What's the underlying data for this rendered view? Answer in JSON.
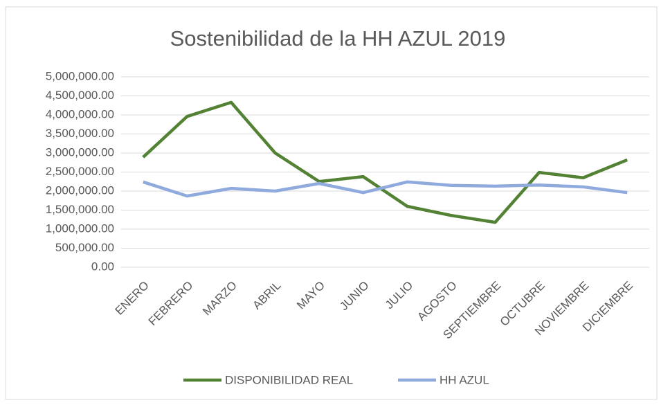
{
  "chart_data": {
    "type": "line",
    "title": "Sostenibilidad de la HH AZUL 2019",
    "categories": [
      "ENERO",
      "FEBRERO",
      "MARZO",
      "ABRIL",
      "MAYO",
      "JUNIO",
      "JULIO",
      "AGOSTO",
      "SEPTIEMBRE",
      "OCTUBRE",
      "NOVIEMBRE",
      "DICIEMBRE"
    ],
    "series": [
      {
        "name": "DISPONIBILIDAD REAL",
        "color": "#548235",
        "values": [
          2890000,
          3960000,
          4330000,
          3000000,
          2250000,
          2380000,
          1600000,
          1360000,
          1180000,
          2490000,
          2350000,
          2820000
        ]
      },
      {
        "name": "HH AZUL",
        "color": "#8faadc",
        "values": [
          2240000,
          1870000,
          2070000,
          2000000,
          2200000,
          1960000,
          2240000,
          2150000,
          2130000,
          2160000,
          2110000,
          1960000
        ]
      }
    ],
    "ylim": [
      0,
      5000000
    ],
    "yticks": [
      {
        "value": 0,
        "label": "0.00"
      },
      {
        "value": 500000,
        "label": "500,000.00"
      },
      {
        "value": 1000000,
        "label": "1,000,000.00"
      },
      {
        "value": 1500000,
        "label": "1,500,000.00"
      },
      {
        "value": 2000000,
        "label": "2,000,000.00"
      },
      {
        "value": 2500000,
        "label": "2,500,000.00"
      },
      {
        "value": 3000000,
        "label": "3,000,000.00"
      },
      {
        "value": 3500000,
        "label": "3,500,000.00"
      },
      {
        "value": 4000000,
        "label": "4,000,000.00"
      },
      {
        "value": 4500000,
        "label": "4,500,000.00"
      },
      {
        "value": 5000000,
        "label": "5,000,000.00"
      }
    ],
    "grid": true,
    "legend": "bottom"
  }
}
